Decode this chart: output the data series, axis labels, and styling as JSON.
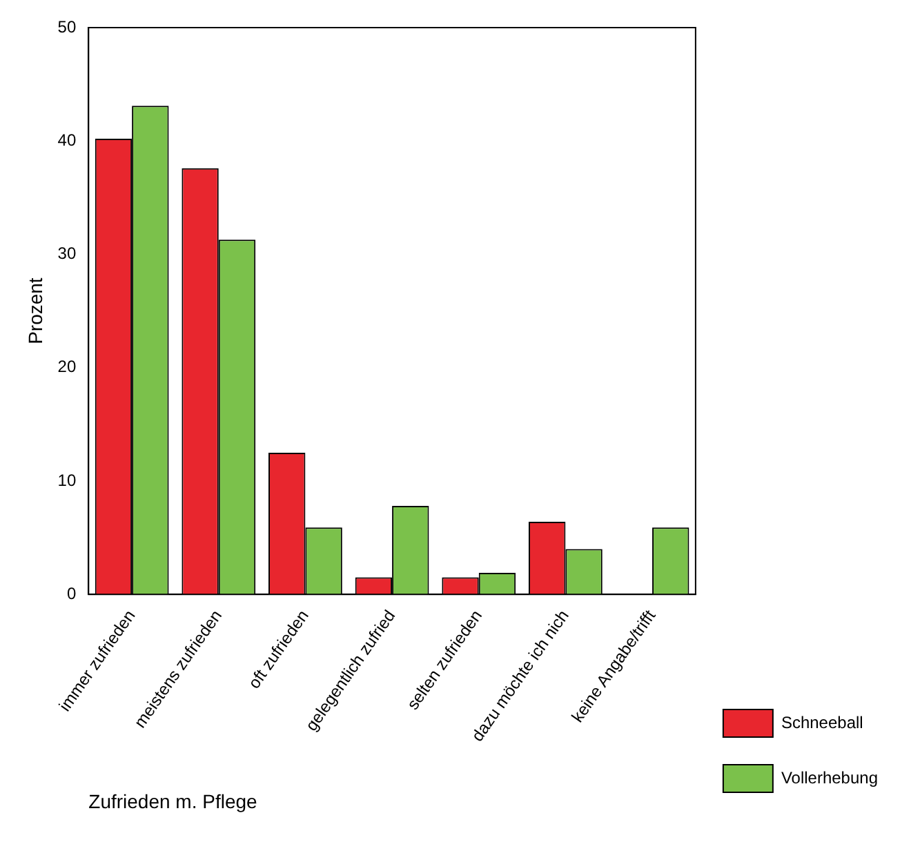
{
  "chart_data": {
    "type": "bar",
    "xlabel": "Zufrieden m. Pflege",
    "ylabel": "Prozent",
    "categories": [
      "immer zufrieden",
      "meistens zufrieden",
      "oft zufrieden",
      "gelegentlich zufried",
      "selten zufrieden",
      "dazu möchte ich nich",
      "keine Angabe/trifft"
    ],
    "series": [
      {
        "name": "Schneeball",
        "color": "#e8262e",
        "values": [
          40.2,
          37.6,
          12.5,
          1.5,
          1.5,
          6.4,
          null
        ]
      },
      {
        "name": "Vollerhebung",
        "color": "#7bc14b",
        "values": [
          43.1,
          31.3,
          5.9,
          7.8,
          1.9,
          4.0,
          5.9
        ]
      }
    ],
    "ylim": [
      0,
      50
    ],
    "yticks": [
      0,
      10,
      20,
      30,
      40,
      50
    ],
    "grid": false,
    "legend": "bottom right"
  }
}
